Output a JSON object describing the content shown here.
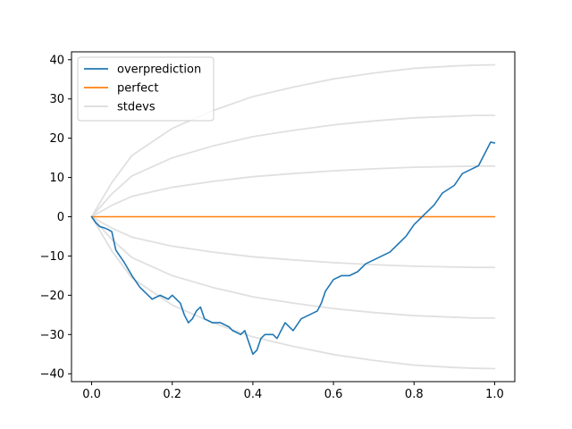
{
  "chart_data": {
    "type": "line",
    "title": "",
    "xlabel": "",
    "ylabel": "",
    "xlim": [
      -0.05,
      1.05
    ],
    "ylim": [
      -42,
      42
    ],
    "xticks": [
      0.0,
      0.2,
      0.4,
      0.6,
      0.8,
      1.0
    ],
    "xtick_labels": [
      "0.0",
      "0.2",
      "0.4",
      "0.6",
      "0.8",
      "1.0"
    ],
    "yticks": [
      -40,
      -30,
      -20,
      -10,
      0,
      10,
      20,
      30,
      40
    ],
    "ytick_labels": [
      "−40",
      "−30",
      "−20",
      "−10",
      "0",
      "10",
      "20",
      "30",
      "40"
    ],
    "grid": false,
    "legend_position": "top-left",
    "legend": [
      {
        "label": "overprediction",
        "color": "#1f77b4"
      },
      {
        "label": "perfect",
        "color": "#ff7f0e"
      },
      {
        "label": "stdevs",
        "color": "#e0e0e0"
      }
    ],
    "series": [
      {
        "name": "overprediction",
        "color": "#1f77b4",
        "x": [
          0.0,
          0.01,
          0.02,
          0.03,
          0.04,
          0.05,
          0.06,
          0.07,
          0.08,
          0.1,
          0.12,
          0.14,
          0.15,
          0.17,
          0.19,
          0.2,
          0.22,
          0.23,
          0.24,
          0.25,
          0.26,
          0.27,
          0.28,
          0.3,
          0.32,
          0.34,
          0.35,
          0.37,
          0.38,
          0.39,
          0.4,
          0.41,
          0.42,
          0.43,
          0.45,
          0.46,
          0.48,
          0.5,
          0.52,
          0.54,
          0.56,
          0.57,
          0.58,
          0.6,
          0.62,
          0.64,
          0.66,
          0.68,
          0.7,
          0.72,
          0.74,
          0.76,
          0.78,
          0.8,
          0.81,
          0.82,
          0.83,
          0.85,
          0.87,
          0.9,
          0.92,
          0.94,
          0.96,
          0.97,
          0.98,
          0.99,
          1.0
        ],
        "y": [
          0,
          -1.5,
          -2.5,
          -2.8,
          -3.2,
          -3.8,
          -8.5,
          -10,
          -11.5,
          -15,
          -18,
          -20,
          -21,
          -20,
          -21,
          -20,
          -22,
          -25,
          -27,
          -26,
          -24,
          -23,
          -26,
          -27,
          -27,
          -28,
          -29,
          -30,
          -29,
          -32,
          -35,
          -34,
          -31,
          -30,
          -30,
          -31,
          -27,
          -29,
          -26,
          -25,
          -24,
          -22,
          -19,
          -16,
          -15,
          -15,
          -14,
          -12,
          -11,
          -10,
          -9,
          -7,
          -5,
          -2,
          -1,
          0,
          1,
          3,
          6,
          8,
          11,
          12,
          13,
          15,
          17,
          19,
          18.8
        ]
      },
      {
        "name": "perfect",
        "color": "#ff7f0e",
        "x": [
          0.0,
          1.0
        ],
        "y": [
          0,
          0
        ]
      },
      {
        "name": "stdevs",
        "color": "#e0e0e0",
        "x": [
          0.0,
          0.05,
          0.1,
          0.2,
          0.3,
          0.4,
          0.5,
          0.6,
          0.7,
          0.8,
          0.9,
          0.95,
          1.0
        ],
        "y": [
          0,
          2.9,
          5.2,
          7.5,
          9.0,
          10.2,
          11.0,
          11.7,
          12.2,
          12.6,
          12.8,
          12.9,
          12.9
        ]
      },
      {
        "name": "",
        "color": "#e0e0e0",
        "x": [
          0.0,
          0.05,
          0.1,
          0.2,
          0.3,
          0.4,
          0.5,
          0.6,
          0.7,
          0.8,
          0.9,
          0.95,
          1.0
        ],
        "y": [
          0,
          5.8,
          10.4,
          15.0,
          18.0,
          20.4,
          22.0,
          23.4,
          24.4,
          25.2,
          25.6,
          25.8,
          25.8
        ]
      },
      {
        "name": "",
        "color": "#e0e0e0",
        "x": [
          0.0,
          0.05,
          0.1,
          0.2,
          0.3,
          0.4,
          0.5,
          0.6,
          0.7,
          0.8,
          0.9,
          0.95,
          1.0
        ],
        "y": [
          0,
          8.7,
          15.6,
          22.5,
          27.0,
          30.6,
          33.0,
          35.1,
          36.6,
          37.8,
          38.4,
          38.6,
          38.7
        ]
      },
      {
        "name": "",
        "color": "#e0e0e0",
        "x": [
          0.0,
          0.05,
          0.1,
          0.2,
          0.3,
          0.4,
          0.5,
          0.6,
          0.7,
          0.8,
          0.9,
          0.95,
          1.0
        ],
        "y": [
          0,
          -2.9,
          -5.2,
          -7.5,
          -9.0,
          -10.2,
          -11.0,
          -11.7,
          -12.2,
          -12.6,
          -12.8,
          -12.9,
          -12.9
        ]
      },
      {
        "name": "",
        "color": "#e0e0e0",
        "x": [
          0.0,
          0.05,
          0.1,
          0.2,
          0.3,
          0.4,
          0.5,
          0.6,
          0.7,
          0.8,
          0.9,
          0.95,
          1.0
        ],
        "y": [
          0,
          -5.8,
          -10.4,
          -15.0,
          -18.0,
          -20.4,
          -22.0,
          -23.4,
          -24.4,
          -25.2,
          -25.6,
          -25.8,
          -25.8
        ]
      },
      {
        "name": "",
        "color": "#e0e0e0",
        "x": [
          0.0,
          0.05,
          0.1,
          0.2,
          0.3,
          0.4,
          0.5,
          0.6,
          0.7,
          0.8,
          0.9,
          0.95,
          1.0
        ],
        "y": [
          0,
          -8.7,
          -15.6,
          -22.5,
          -27.0,
          -30.6,
          -33.0,
          -35.1,
          -36.6,
          -37.8,
          -38.4,
          -38.6,
          -38.7
        ]
      }
    ]
  }
}
